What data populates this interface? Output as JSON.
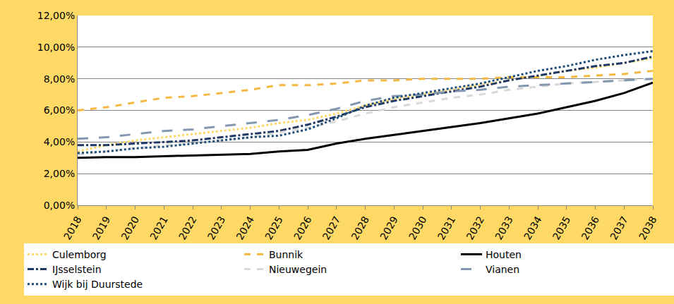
{
  "chart_data": {
    "type": "line",
    "categories": [
      "2018",
      "2019",
      "2020",
      "2021",
      "2022",
      "2023",
      "2024",
      "2025",
      "2026",
      "2027",
      "2028",
      "2029",
      "2030",
      "2031",
      "2032",
      "2033",
      "2034",
      "2035",
      "2036",
      "2037",
      "2038"
    ],
    "series": [
      {
        "name": "Culemborg",
        "color": "#FFD966",
        "line_style": "dotted",
        "values": [
          3.4,
          3.8,
          4.1,
          4.3,
          4.5,
          4.7,
          4.9,
          5.2,
          5.4,
          5.8,
          6.3,
          6.7,
          7.0,
          7.3,
          7.6,
          7.9,
          8.2,
          8.5,
          8.7,
          9.0,
          9.3
        ]
      },
      {
        "name": "Bunnik",
        "color": "#F4B942",
        "line_style": "dashed",
        "values": [
          6.0,
          6.2,
          6.5,
          6.8,
          6.9,
          7.1,
          7.3,
          7.6,
          7.6,
          7.7,
          7.9,
          7.9,
          8.0,
          8.0,
          8.0,
          8.1,
          8.1,
          8.1,
          8.2,
          8.3,
          8.5
        ]
      },
      {
        "name": "Houten",
        "color": "#000000",
        "line_style": "solid",
        "values": [
          3.0,
          3.05,
          3.05,
          3.1,
          3.15,
          3.2,
          3.25,
          3.4,
          3.5,
          3.9,
          4.2,
          4.45,
          4.7,
          4.95,
          5.2,
          5.5,
          5.8,
          6.2,
          6.6,
          7.1,
          7.75
        ]
      },
      {
        "name": "IJsselstein",
        "color": "#1F3864",
        "line_style": "dashdot",
        "values": [
          3.8,
          3.8,
          3.9,
          4.0,
          4.1,
          4.3,
          4.5,
          4.7,
          5.1,
          5.6,
          6.2,
          6.6,
          6.9,
          7.2,
          7.5,
          7.9,
          8.2,
          8.5,
          8.8,
          9.0,
          9.4
        ]
      },
      {
        "name": "Nieuwegein",
        "color": "#D9D9D9",
        "line_style": "dashed",
        "values": [
          3.2,
          3.4,
          3.6,
          3.8,
          3.9,
          4.1,
          4.3,
          4.6,
          4.9,
          5.3,
          5.8,
          6.2,
          6.5,
          6.8,
          7.0,
          7.3,
          7.5,
          7.7,
          7.8,
          7.9,
          8.0
        ]
      },
      {
        "name": "Vianen",
        "color": "#8497B0",
        "line_style": "longdash",
        "values": [
          4.2,
          4.3,
          4.5,
          4.7,
          4.8,
          5.0,
          5.2,
          5.4,
          5.7,
          6.1,
          6.6,
          6.9,
          7.0,
          7.2,
          7.3,
          7.5,
          7.6,
          7.7,
          7.8,
          7.9,
          8.0
        ]
      },
      {
        "name": "Wijk bij Duurstede",
        "color": "#1F4E79",
        "line_style": "dotted",
        "values": [
          3.3,
          3.4,
          3.6,
          3.7,
          3.9,
          4.1,
          4.3,
          4.4,
          4.8,
          5.5,
          6.3,
          6.8,
          7.1,
          7.4,
          7.7,
          8.1,
          8.5,
          8.8,
          9.2,
          9.5,
          9.75
        ]
      }
    ],
    "ylim": [
      0,
      12
    ],
    "yticks": [
      {
        "value": 0,
        "label": "0,00%"
      },
      {
        "value": 2,
        "label": "2,00%"
      },
      {
        "value": 4,
        "label": "4,00%"
      },
      {
        "value": 6,
        "label": "6,00%"
      },
      {
        "value": 8,
        "label": "8,00%"
      },
      {
        "value": 10,
        "label": "10,00%"
      },
      {
        "value": 12,
        "label": "12,00%"
      }
    ],
    "grid": true,
    "legend": "bottom"
  }
}
